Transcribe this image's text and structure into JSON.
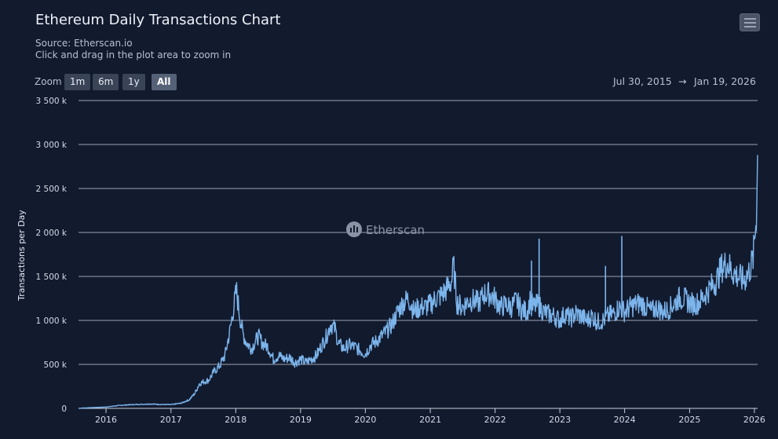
{
  "header": {
    "title": "Ethereum Daily Transactions Chart",
    "source": "Source: Etherscan.io",
    "hint": "Click and drag in the plot area to zoom in",
    "menu_icon": "hamburger-menu-icon"
  },
  "zoom": {
    "label": "Zoom",
    "buttons": [
      "1m",
      "6m",
      "1y",
      "All"
    ],
    "active": "All"
  },
  "range": {
    "from": "Jul 30, 2015",
    "arrow": "→",
    "to": "Jan 19, 2026"
  },
  "watermark": {
    "text": "Etherscan",
    "icon": "etherscan-logo-icon"
  },
  "chart_data": {
    "type": "line",
    "ylabel": "Transactions per Day",
    "xlabel": "",
    "ylim": [
      0,
      3500000
    ],
    "xlim": [
      "2015-07-30",
      "2026-01-19"
    ],
    "grid": true,
    "legend": "none",
    "color": "#7cb5ec",
    "y_ticks": [
      {
        "value": 0,
        "label": "0"
      },
      {
        "value": 500000,
        "label": "500 k"
      },
      {
        "value": 1000000,
        "label": "1 000 k"
      },
      {
        "value": 1500000,
        "label": "1 500 k"
      },
      {
        "value": 2000000,
        "label": "2 000 k"
      },
      {
        "value": 2500000,
        "label": "2 500 k"
      },
      {
        "value": 3000000,
        "label": "3 000 k"
      },
      {
        "value": 3500000,
        "label": "3 500 k"
      }
    ],
    "x_ticks": [
      "2016",
      "2017",
      "2018",
      "2019",
      "2020",
      "2021",
      "2022",
      "2023",
      "2024",
      "2025",
      "2026"
    ],
    "series": [
      {
        "values": [
          [
            "2015-07-30",
            0
          ],
          [
            "2015-09-01",
            5000
          ],
          [
            "2015-11-01",
            10000
          ],
          [
            "2016-01-01",
            15000
          ],
          [
            "2016-03-01",
            30000
          ],
          [
            "2016-05-01",
            40000
          ],
          [
            "2016-07-01",
            45000
          ],
          [
            "2016-09-01",
            50000
          ],
          [
            "2016-11-01",
            45000
          ],
          [
            "2017-01-01",
            42000
          ],
          [
            "2017-03-01",
            60000
          ],
          [
            "2017-04-15",
            100000
          ],
          [
            "2017-05-15",
            170000
          ],
          [
            "2017-06-10",
            280000
          ],
          [
            "2017-07-01",
            300000
          ],
          [
            "2017-08-01",
            320000
          ],
          [
            "2017-09-01",
            420000
          ],
          [
            "2017-10-01",
            480000
          ],
          [
            "2017-11-01",
            600000
          ],
          [
            "2017-12-01",
            900000
          ],
          [
            "2017-12-20",
            1150000
          ],
          [
            "2018-01-05",
            1340000
          ],
          [
            "2018-01-20",
            1100000
          ],
          [
            "2018-02-10",
            850000
          ],
          [
            "2018-03-01",
            750000
          ],
          [
            "2018-04-01",
            680000
          ],
          [
            "2018-04-20",
            760000
          ],
          [
            "2018-05-10",
            820000
          ],
          [
            "2018-06-01",
            740000
          ],
          [
            "2018-07-01",
            700000
          ],
          [
            "2018-08-01",
            560000
          ],
          [
            "2018-09-01",
            600000
          ],
          [
            "2018-10-01",
            560000
          ],
          [
            "2018-11-01",
            580000
          ],
          [
            "2018-12-01",
            520000
          ],
          [
            "2019-01-01",
            560000
          ],
          [
            "2019-02-01",
            520000
          ],
          [
            "2019-03-01",
            560000
          ],
          [
            "2019-04-01",
            600000
          ],
          [
            "2019-05-01",
            720000
          ],
          [
            "2019-06-01",
            840000
          ],
          [
            "2019-06-20",
            960000
          ],
          [
            "2019-07-15",
            900000
          ],
          [
            "2019-08-01",
            740000
          ],
          [
            "2019-09-01",
            680000
          ],
          [
            "2019-10-01",
            720000
          ],
          [
            "2019-11-01",
            700000
          ],
          [
            "2019-12-01",
            660000
          ],
          [
            "2020-01-01",
            620000
          ],
          [
            "2020-02-01",
            720000
          ],
          [
            "2020-03-01",
            760000
          ],
          [
            "2020-04-01",
            820000
          ],
          [
            "2020-05-01",
            880000
          ],
          [
            "2020-06-01",
            960000
          ],
          [
            "2020-07-01",
            1100000
          ],
          [
            "2020-08-01",
            1200000
          ],
          [
            "2020-09-01",
            1250000
          ],
          [
            "2020-10-01",
            1100000
          ],
          [
            "2020-11-01",
            1150000
          ],
          [
            "2020-12-01",
            1150000
          ],
          [
            "2021-01-01",
            1180000
          ],
          [
            "2021-02-01",
            1250000
          ],
          [
            "2021-03-01",
            1280000
          ],
          [
            "2021-04-01",
            1350000
          ],
          [
            "2021-05-01",
            1450000
          ],
          [
            "2021-05-12",
            1620000
          ],
          [
            "2021-06-01",
            1200000
          ],
          [
            "2021-07-01",
            1150000
          ],
          [
            "2021-08-01",
            1220000
          ],
          [
            "2021-09-01",
            1230000
          ],
          [
            "2021-10-01",
            1200000
          ],
          [
            "2021-11-01",
            1300000
          ],
          [
            "2021-12-01",
            1300000
          ],
          [
            "2022-01-01",
            1250000
          ],
          [
            "2022-02-01",
            1150000
          ],
          [
            "2022-03-01",
            1180000
          ],
          [
            "2022-04-01",
            1150000
          ],
          [
            "2022-05-01",
            1220000
          ],
          [
            "2022-06-01",
            1120000
          ],
          [
            "2022-07-01",
            1100000
          ],
          [
            "2022-07-20",
            1250000
          ],
          [
            "2022-08-01",
            1150000
          ],
          [
            "2022-09-01",
            1180000
          ],
          [
            "2022-10-01",
            1100000
          ],
          [
            "2022-11-01",
            1070000
          ],
          [
            "2022-12-01",
            1050000
          ],
          [
            "2023-01-01",
            1000000
          ],
          [
            "2023-02-01",
            1080000
          ],
          [
            "2023-03-01",
            1020000
          ],
          [
            "2023-04-01",
            1080000
          ],
          [
            "2023-05-01",
            1050000
          ],
          [
            "2023-06-01",
            1000000
          ],
          [
            "2023-07-01",
            1050000
          ],
          [
            "2023-08-01",
            980000
          ],
          [
            "2023-09-01",
            1000000
          ],
          [
            "2023-10-01",
            1050000
          ],
          [
            "2023-11-01",
            1080000
          ],
          [
            "2023-12-01",
            1150000
          ],
          [
            "2024-01-01",
            1100000
          ],
          [
            "2024-02-01",
            1150000
          ],
          [
            "2024-03-01",
            1180000
          ],
          [
            "2024-04-01",
            1200000
          ],
          [
            "2024-05-01",
            1150000
          ],
          [
            "2024-06-01",
            1100000
          ],
          [
            "2024-07-01",
            1150000
          ],
          [
            "2024-08-01",
            1100000
          ],
          [
            "2024-09-01",
            1120000
          ],
          [
            "2024-10-01",
            1180000
          ],
          [
            "2024-11-01",
            1250000
          ],
          [
            "2024-12-01",
            1250000
          ],
          [
            "2025-01-01",
            1200000
          ],
          [
            "2025-02-01",
            1180000
          ],
          [
            "2025-03-01",
            1220000
          ],
          [
            "2025-04-01",
            1300000
          ],
          [
            "2025-05-01",
            1380000
          ],
          [
            "2025-06-01",
            1450000
          ],
          [
            "2025-07-01",
            1600000
          ],
          [
            "2025-08-01",
            1650000
          ],
          [
            "2025-09-01",
            1550000
          ],
          [
            "2025-10-01",
            1500000
          ],
          [
            "2025-11-01",
            1450000
          ],
          [
            "2025-12-01",
            1550000
          ],
          [
            "2025-12-25",
            1700000
          ],
          [
            "2026-01-05",
            2000000
          ],
          [
            "2026-01-12",
            2200000
          ],
          [
            "2026-01-19",
            2880000
          ]
        ]
      }
    ],
    "spikes": [
      [
        "2022-09-06",
        1930000
      ],
      [
        "2023-09-15",
        1620000
      ],
      [
        "2023-12-16",
        1960000
      ],
      [
        "2022-07-25",
        1680000
      ]
    ]
  }
}
